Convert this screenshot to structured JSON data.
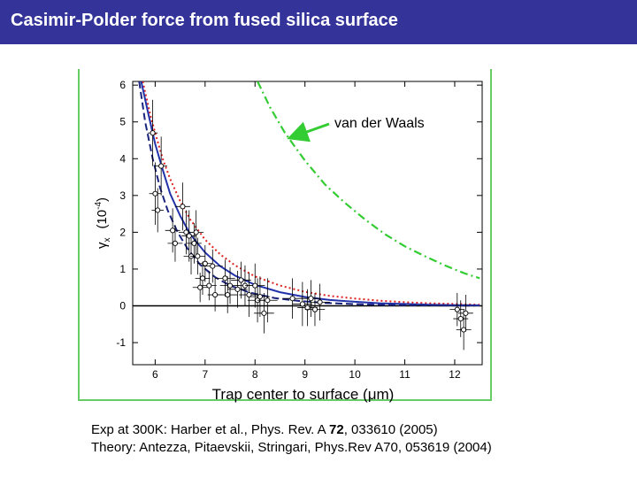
{
  "header": {
    "title": "Casimir-Polder force from fused silica surface",
    "bg_color": "#333399"
  },
  "caption": {
    "line1_prefix": "Exp at 300K: Harber et al., Phys. Rev. A ",
    "line1_volume": "72",
    "line1_suffix": ", 033610 (2005)",
    "line2": "Theory: Antezza, Pitaevskii, Stringari, Phys.Rev A70, 053619 (2004)"
  },
  "chart_data": {
    "type": "scatter",
    "xlabel_prefix": "Trap center to surface (",
    "xlabel_mu": "μ",
    "xlabel_suffix": "m)",
    "ylabel_main": "γ",
    "ylabel_sub": "x",
    "ylabel_unit_open": "(10",
    "ylabel_unit_exp": "-4",
    "ylabel_unit_close": ")",
    "xlim": [
      5.55,
      12.55
    ],
    "ylim": [
      -1.6,
      6.1
    ],
    "x_ticks": [
      6,
      7,
      8,
      9,
      10,
      11,
      12
    ],
    "y_ticks": [
      -1,
      0,
      1,
      2,
      3,
      4,
      5,
      6
    ],
    "x_tick_labels": [
      "6",
      "7",
      "8",
      "9",
      "10",
      "11",
      "12"
    ],
    "y_tick_labels": [
      "-1",
      "0",
      "1",
      "2",
      "3",
      "4",
      "5",
      "6"
    ],
    "annotation": "van der Waals",
    "colors": {
      "axes": "#000000",
      "frame": "#66cc66",
      "van_der_waals": "#33cc33",
      "blue_solid": "#2233aa",
      "blue_dashed": "#1a237e",
      "red_dotted": "#dd2222",
      "arrow": "#33cc33"
    },
    "series": [
      {
        "style": "dotted",
        "color": "#dd2222",
        "x": [
          5.75,
          5.9,
          6.0,
          6.15,
          6.3,
          6.5,
          6.7,
          7.0,
          7.3,
          7.6,
          8.0,
          8.5,
          9.0,
          9.5,
          10.0,
          10.5,
          11.0,
          11.5,
          12.0,
          12.5
        ],
        "y": [
          6.1,
          5.2,
          4.7,
          4.0,
          3.45,
          2.85,
          2.35,
          1.8,
          1.4,
          1.1,
          0.8,
          0.55,
          0.38,
          0.27,
          0.2,
          0.14,
          0.1,
          0.07,
          0.05,
          0.03
        ]
      },
      {
        "style": "solid",
        "color": "#2233aa",
        "x": [
          5.72,
          5.85,
          6.0,
          6.15,
          6.3,
          6.5,
          6.7,
          7.0,
          7.3,
          7.6,
          8.0,
          8.5,
          9.0,
          9.5,
          10.0,
          10.5,
          11.0,
          11.5,
          12.0,
          12.5
        ],
        "y": [
          6.1,
          5.3,
          4.4,
          3.7,
          3.05,
          2.45,
          1.95,
          1.45,
          1.08,
          0.82,
          0.57,
          0.37,
          0.24,
          0.16,
          0.11,
          0.07,
          0.05,
          0.03,
          0.02,
          0.015
        ]
      },
      {
        "style": "dashed",
        "color": "#1a237e",
        "x": [
          5.68,
          5.8,
          5.95,
          6.1,
          6.25,
          6.45,
          6.65,
          6.9,
          7.2,
          7.5,
          7.9,
          8.4,
          8.9,
          9.4,
          10.0,
          10.6,
          11.2,
          11.8,
          12.4
        ],
        "y": [
          6.1,
          5.0,
          4.0,
          3.2,
          2.6,
          2.0,
          1.55,
          1.12,
          0.78,
          0.55,
          0.36,
          0.21,
          0.13,
          0.08,
          0.045,
          0.025,
          0.015,
          0.01,
          0.005
        ]
      },
      {
        "style": "dashdot",
        "color": "#33cc33",
        "x": [
          8.05,
          8.3,
          8.6,
          9.0,
          9.4,
          9.8,
          10.2,
          10.6,
          11.0,
          11.4,
          11.8,
          12.2,
          12.5
        ],
        "y": [
          6.1,
          5.4,
          4.7,
          3.95,
          3.3,
          2.8,
          2.35,
          1.95,
          1.62,
          1.35,
          1.1,
          0.88,
          0.75
        ]
      }
    ],
    "points": [
      {
        "x": 5.95,
        "y": 4.7,
        "yerr": 0.9,
        "xerr": 0.1
      },
      {
        "x": 6.0,
        "y": 3.05,
        "yerr": 0.85,
        "xerr": 0.12
      },
      {
        "x": 6.05,
        "y": 2.6,
        "yerr": 0.6,
        "xerr": 0.12
      },
      {
        "x": 6.12,
        "y": 3.8,
        "yerr": 0.8,
        "xerr": 0.12
      },
      {
        "x": 6.35,
        "y": 2.05,
        "yerr": 0.6,
        "xerr": 0.15
      },
      {
        "x": 6.4,
        "y": 1.7,
        "yerr": 0.5,
        "xerr": 0.15
      },
      {
        "x": 6.55,
        "y": 2.7,
        "yerr": 0.65,
        "xerr": 0.15
      },
      {
        "x": 6.62,
        "y": 2.0,
        "yerr": 0.6,
        "xerr": 0.15
      },
      {
        "x": 6.68,
        "y": 1.9,
        "yerr": 0.7,
        "xerr": 0.15
      },
      {
        "x": 6.72,
        "y": 1.35,
        "yerr": 0.5,
        "xerr": 0.15
      },
      {
        "x": 6.78,
        "y": 1.7,
        "yerr": 0.55,
        "xerr": 0.15
      },
      {
        "x": 6.82,
        "y": 2.0,
        "yerr": 0.6,
        "xerr": 0.15
      },
      {
        "x": 6.85,
        "y": 1.35,
        "yerr": 0.5,
        "xerr": 0.15
      },
      {
        "x": 6.9,
        "y": 0.5,
        "yerr": 0.4,
        "xerr": 0.15
      },
      {
        "x": 6.95,
        "y": 0.75,
        "yerr": 0.45,
        "xerr": 0.15
      },
      {
        "x": 7.0,
        "y": 1.15,
        "yerr": 0.5,
        "xerr": 0.15
      },
      {
        "x": 7.08,
        "y": 0.55,
        "yerr": 0.4,
        "xerr": 0.15
      },
      {
        "x": 7.15,
        "y": 1.08,
        "yerr": 0.45,
        "xerr": 0.2
      },
      {
        "x": 7.2,
        "y": 0.3,
        "yerr": 0.45,
        "xerr": 0.15
      },
      {
        "x": 7.4,
        "y": 0.75,
        "yerr": 0.5,
        "xerr": 0.2
      },
      {
        "x": 7.45,
        "y": 0.3,
        "yerr": 0.5,
        "xerr": 0.2
      },
      {
        "x": 7.5,
        "y": 0.55,
        "yerr": 0.5,
        "xerr": 0.2
      },
      {
        "x": 7.65,
        "y": 0.45,
        "yerr": 0.5,
        "xerr": 0.2
      },
      {
        "x": 7.72,
        "y": 0.7,
        "yerr": 0.5,
        "xerr": 0.2
      },
      {
        "x": 7.8,
        "y": 0.55,
        "yerr": 0.55,
        "xerr": 0.2
      },
      {
        "x": 7.88,
        "y": 0.3,
        "yerr": 0.6,
        "xerr": 0.2
      },
      {
        "x": 8.0,
        "y": 0.55,
        "yerr": 0.6,
        "xerr": 0.2
      },
      {
        "x": 8.05,
        "y": 0.15,
        "yerr": 0.6,
        "xerr": 0.2
      },
      {
        "x": 8.1,
        "y": 0.25,
        "yerr": 0.55,
        "xerr": 0.2
      },
      {
        "x": 8.18,
        "y": -0.2,
        "yerr": 0.55,
        "xerr": 0.2
      },
      {
        "x": 8.25,
        "y": 0.15,
        "yerr": 0.6,
        "xerr": 0.2
      },
      {
        "x": 8.75,
        "y": 0.2,
        "yerr": 0.55,
        "xerr": 0.2
      },
      {
        "x": 8.95,
        "y": 0.05,
        "yerr": 0.6,
        "xerr": 0.2
      },
      {
        "x": 9.05,
        "y": -0.05,
        "yerr": 0.5,
        "xerr": 0.2
      },
      {
        "x": 9.12,
        "y": 0.2,
        "yerr": 0.5,
        "xerr": 0.2
      },
      {
        "x": 9.2,
        "y": -0.1,
        "yerr": 0.45,
        "xerr": 0.2
      },
      {
        "x": 9.3,
        "y": 0.1,
        "yerr": 0.5,
        "xerr": 0.2
      },
      {
        "x": 12.05,
        "y": -0.1,
        "yerr": 0.45,
        "xerr": 0.15
      },
      {
        "x": 12.12,
        "y": -0.35,
        "yerr": 0.5,
        "xerr": 0.15
      },
      {
        "x": 12.18,
        "y": -0.65,
        "yerr": 0.55,
        "xerr": 0.15
      },
      {
        "x": 12.22,
        "y": -0.2,
        "yerr": 0.5,
        "xerr": 0.15
      }
    ]
  }
}
